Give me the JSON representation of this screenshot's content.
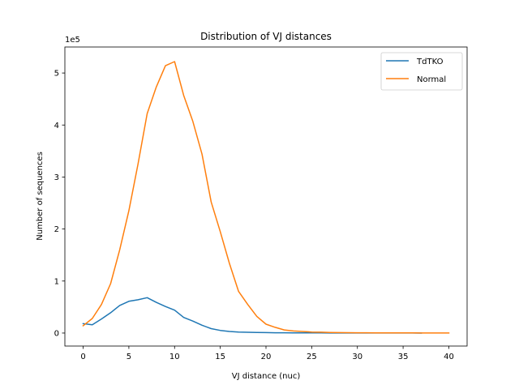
{
  "chart_data": {
    "type": "line",
    "title": "Distribution of VJ distances",
    "xlabel": "VJ distance (nuc)",
    "ylabel": "Number of sequences",
    "y_scale_label": "1e5",
    "xlim": [
      -2,
      42
    ],
    "ylim": [
      -25000,
      550000
    ],
    "x_ticks": [
      0,
      5,
      10,
      15,
      20,
      25,
      30,
      35,
      40
    ],
    "y_ticks": [
      0,
      100000,
      200000,
      300000,
      400000,
      500000
    ],
    "y_tick_labels": [
      "0",
      "1",
      "2",
      "3",
      "4",
      "5"
    ],
    "grid": false,
    "legend_position": "upper right",
    "series": [
      {
        "name": "TdTKO",
        "color": "#1f77b4",
        "x": [
          0,
          1,
          2,
          3,
          4,
          5,
          6,
          7,
          8,
          9,
          10,
          11,
          12,
          13,
          14,
          15,
          16,
          17,
          18,
          19,
          20,
          21,
          22,
          23,
          24,
          25,
          26,
          27,
          28,
          29,
          30,
          31,
          32,
          33,
          34,
          35,
          36,
          37
        ],
        "values": [
          18000,
          16000,
          27000,
          39000,
          53000,
          61000,
          64000,
          68000,
          59000,
          51000,
          44000,
          30000,
          23000,
          15000,
          8500,
          5000,
          3000,
          2000,
          1500,
          1000,
          800,
          600,
          500,
          400,
          300,
          250,
          200,
          150,
          120,
          100,
          80,
          60,
          50,
          40,
          30,
          20,
          15,
          10
        ]
      },
      {
        "name": "Normal",
        "color": "#ff7f0e",
        "x": [
          0,
          1,
          2,
          3,
          4,
          5,
          6,
          7,
          8,
          9,
          10,
          11,
          12,
          13,
          14,
          15,
          16,
          17,
          18,
          19,
          20,
          21,
          22,
          23,
          24,
          25,
          26,
          27,
          28,
          29,
          30,
          31,
          32,
          33,
          34,
          35,
          36,
          37,
          38,
          39,
          40
        ],
        "values": [
          14000,
          28000,
          55000,
          95000,
          160000,
          235000,
          325000,
          422000,
          473000,
          514000,
          522000,
          457000,
          407000,
          344000,
          252000,
          195000,
          134000,
          80000,
          55000,
          32000,
          17000,
          11000,
          6000,
          4000,
          3000,
          2000,
          1600,
          1200,
          900,
          700,
          600,
          500,
          400,
          350,
          300,
          250,
          200,
          150,
          100,
          50,
          20
        ]
      }
    ]
  }
}
